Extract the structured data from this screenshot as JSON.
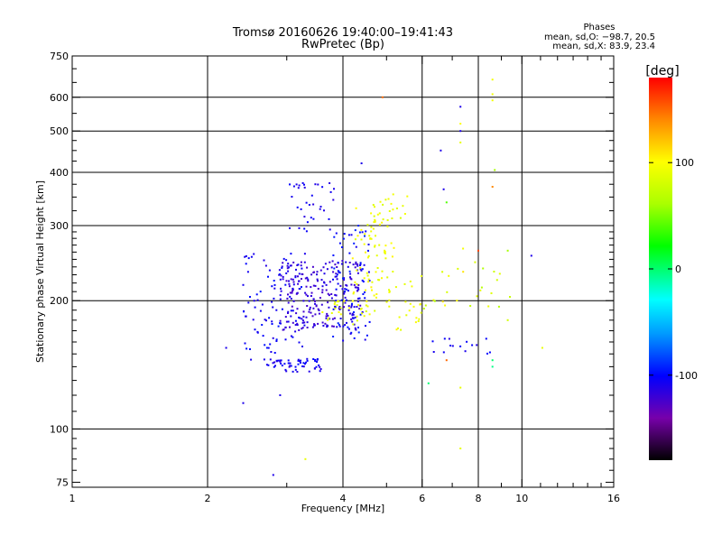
{
  "chart_data": {
    "type": "scatter",
    "title": "Tromsø 20160626 19:40:00–19:41:43",
    "subtitle": "RwPretec (Bp)",
    "xlabel": "Frequency [MHz]",
    "ylabel": "Stationary phase Virtual Height [km]",
    "x_scale": "log2",
    "y_scale": "log",
    "xlim": [
      1,
      16
    ],
    "ylim": [
      73,
      750
    ],
    "x_ticks": [
      1,
      2,
      4,
      6,
      8,
      10,
      16
    ],
    "x_tick_labels": [
      "1",
      "2",
      "4",
      "6",
      "8",
      "10",
      "16"
    ],
    "x_grid": [
      2,
      4,
      6,
      8,
      10
    ],
    "y_ticks": [
      75,
      100,
      200,
      300,
      400,
      500,
      600,
      750
    ],
    "y_tick_labels": [
      "75",
      "100",
      "200",
      "300",
      "400",
      "500",
      "600",
      "750"
    ],
    "y_grid": [
      100,
      200,
      300,
      400,
      500,
      600
    ],
    "grid": true,
    "stats": {
      "heading": "Phases",
      "line_o": "mean, sd,O: −98.7, 20.5",
      "line_x": "mean, sd,X:  83.9, 23.4"
    },
    "colorbar": {
      "label": "[deg]",
      "range": [
        -180,
        180
      ],
      "tick_values": [
        100,
        0,
        -100
      ],
      "tick_labels": [
        "100",
        "0",
        "-100"
      ]
    },
    "clusters": [
      {
        "x": [
          2.9,
          4.4
        ],
        "y": [
          170,
          250
        ],
        "phase": [
          -125,
          -110
        ],
        "n": 240
      },
      {
        "x": [
          2.4,
          3.3
        ],
        "y": [
          140,
          260
        ],
        "phase": [
          -115,
          -95
        ],
        "n": 110
      },
      {
        "x": [
          2.8,
          3.6
        ],
        "y": [
          136,
          146
        ],
        "phase": [
          -115,
          -100
        ],
        "n": 45
      },
      {
        "x": [
          3.0,
          3.9
        ],
        "y": [
          290,
          380
        ],
        "phase": [
          -115,
          -100
        ],
        "n": 35
      },
      {
        "x": [
          3.8,
          4.6
        ],
        "y": [
          160,
          300
        ],
        "phase": [
          -110,
          -90
        ],
        "n": 80
      },
      {
        "x": [
          4.2,
          5.2
        ],
        "y": [
          200,
          330
        ],
        "phase": [
          85,
          105
        ],
        "n": 70
      },
      {
        "x": [
          3.6,
          4.8
        ],
        "y": [
          175,
          200
        ],
        "phase": [
          80,
          100
        ],
        "n": 30
      },
      {
        "x": [
          5.0,
          6.0
        ],
        "y": [
          170,
          230
        ],
        "phase": [
          85,
          105
        ],
        "n": 25
      },
      {
        "x": [
          4.5,
          5.6
        ],
        "y": [
          300,
          360
        ],
        "phase": [
          80,
          100
        ],
        "n": 20
      },
      {
        "x": [
          6.0,
          9.5
        ],
        "y": [
          190,
          250
        ],
        "phase": [
          60,
          110
        ],
        "n": 25
      },
      {
        "x": [
          6.3,
          8.5
        ],
        "y": [
          150,
          165
        ],
        "phase": [
          -115,
          -100
        ],
        "n": 15
      }
    ],
    "points": [
      {
        "x": 2.4,
        "y": 115,
        "phase": -110
      },
      {
        "x": 2.9,
        "y": 120,
        "phase": -110
      },
      {
        "x": 2.8,
        "y": 78,
        "phase": -110
      },
      {
        "x": 2.2,
        "y": 155,
        "phase": -110
      },
      {
        "x": 3.3,
        "y": 85,
        "phase": 90
      },
      {
        "x": 4.9,
        "y": 600,
        "phase": 150
      },
      {
        "x": 4.4,
        "y": 420,
        "phase": -110
      },
      {
        "x": 7.3,
        "y": 570,
        "phase": -110
      },
      {
        "x": 7.3,
        "y": 500,
        "phase": -110
      },
      {
        "x": 7.3,
        "y": 520,
        "phase": 100
      },
      {
        "x": 7.3,
        "y": 470,
        "phase": 90
      },
      {
        "x": 6.6,
        "y": 450,
        "phase": -110
      },
      {
        "x": 8.6,
        "y": 660,
        "phase": 95
      },
      {
        "x": 8.6,
        "y": 610,
        "phase": 95
      },
      {
        "x": 8.6,
        "y": 590,
        "phase": 95
      },
      {
        "x": 8.7,
        "y": 405,
        "phase": 60
      },
      {
        "x": 8.6,
        "y": 370,
        "phase": 140
      },
      {
        "x": 6.7,
        "y": 365,
        "phase": -110
      },
      {
        "x": 6.8,
        "y": 340,
        "phase": 40
      },
      {
        "x": 7.4,
        "y": 265,
        "phase": 95
      },
      {
        "x": 8.0,
        "y": 262,
        "phase": 160
      },
      {
        "x": 9.3,
        "y": 262,
        "phase": 60
      },
      {
        "x": 10.5,
        "y": 255,
        "phase": -110
      },
      {
        "x": 7.3,
        "y": 90,
        "phase": 90
      },
      {
        "x": 7.3,
        "y": 125,
        "phase": 90
      },
      {
        "x": 6.2,
        "y": 128,
        "phase": 0
      },
      {
        "x": 11.1,
        "y": 155,
        "phase": 90
      },
      {
        "x": 9.3,
        "y": 180,
        "phase": 80
      },
      {
        "x": 8.6,
        "y": 145,
        "phase": 0
      },
      {
        "x": 8.6,
        "y": 140,
        "phase": -5
      },
      {
        "x": 6.8,
        "y": 145,
        "phase": 150
      }
    ]
  }
}
